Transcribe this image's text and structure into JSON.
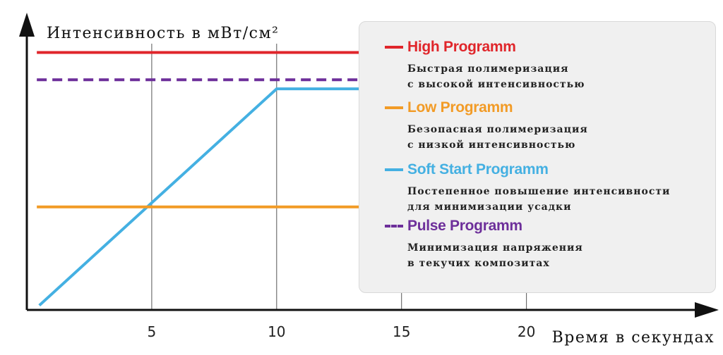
{
  "chart_data": {
    "type": "line",
    "ylabel": "Интенсивность в мВт/см²",
    "xlabel": "Время в секундах",
    "xticks": [
      5,
      10,
      15,
      20
    ],
    "xlim": [
      0,
      27.5
    ],
    "ylim": [
      0,
      100
    ],
    "grid": "vertical",
    "legend": "right",
    "series": [
      {
        "name": "High Programm",
        "color": "#e0262b",
        "style": "solid",
        "description": "Быстрая полимеризация\nс высокой интенсивностью",
        "points": [
          [
            0.4,
            85
          ],
          [
            21.3,
            85
          ]
        ]
      },
      {
        "name": "Low Programm",
        "color": "#f29b26",
        "style": "solid",
        "description": "Безопасная полимеризация\nс низкой интенсивностью",
        "points": [
          [
            0.4,
            34
          ],
          [
            21.3,
            34
          ]
        ]
      },
      {
        "name": "Soft Start Programm",
        "color": "#44b0e2",
        "style": "solid",
        "description": "Постепенное повышение интенсивности\nдля минимизации усадки",
        "points": [
          [
            0.5,
            1.5
          ],
          [
            10,
            73
          ],
          [
            21.3,
            73
          ]
        ]
      },
      {
        "name": "Pulse Programm",
        "color": "#6d2f9a",
        "style": "dashed",
        "description": "Минимизация напряжения\nв текучих композитах",
        "points": [
          [
            0.4,
            76
          ],
          [
            21.3,
            76
          ]
        ]
      }
    ]
  }
}
